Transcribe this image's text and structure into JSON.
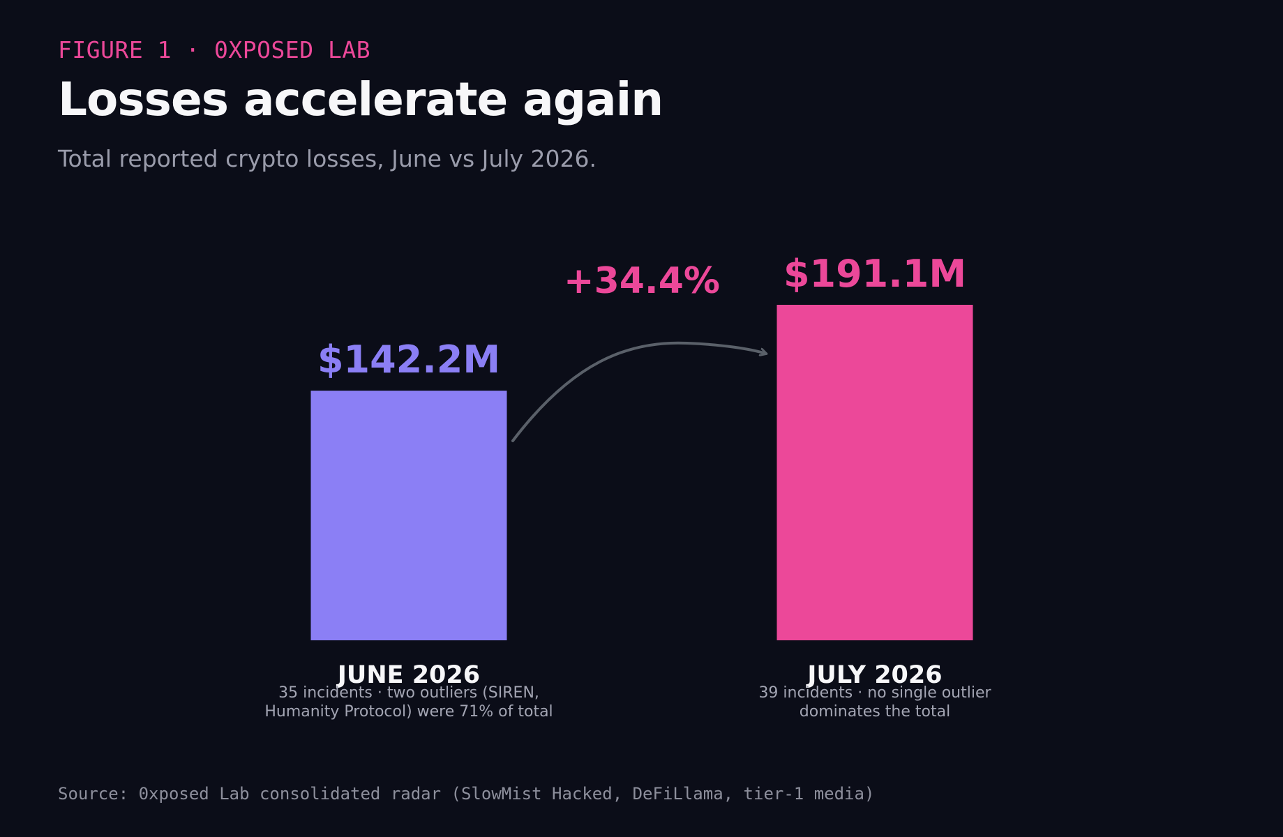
{
  "header": {
    "eyebrow": "FIGURE 1 · 0XPOSED LAB",
    "title": "Losses accelerate again",
    "subtitle": "Total reported crypto losses, June vs July 2026."
  },
  "footer": {
    "source": "Source: 0xposed Lab consolidated radar (SlowMist Hacked, DeFiLlama, tier-1 media)"
  },
  "chart_data": {
    "type": "bar",
    "title": "Losses accelerate again",
    "subtitle": "Total reported crypto losses, June vs July 2026.",
    "xlabel": "",
    "ylabel": "",
    "grid": false,
    "ylim": [
      0,
      191.1
    ],
    "unit": "M USD",
    "categories": [
      "JUNE 2026",
      "JULY 2026"
    ],
    "values": [
      142.2,
      191.1
    ],
    "value_labels": [
      "$142.2M",
      "$191.1M"
    ],
    "colors": [
      "#8b7ff5",
      "#ec4899"
    ],
    "notes": [
      [
        "35 incidents · two outliers (SIREN,",
        "Humanity Protocol) were 71% of total"
      ],
      [
        "39 incidents · no single outlier",
        "dominates the total"
      ]
    ],
    "change_label": "+34.4%",
    "change_color": "#ec4899",
    "arrow_color": "#5a6069"
  }
}
